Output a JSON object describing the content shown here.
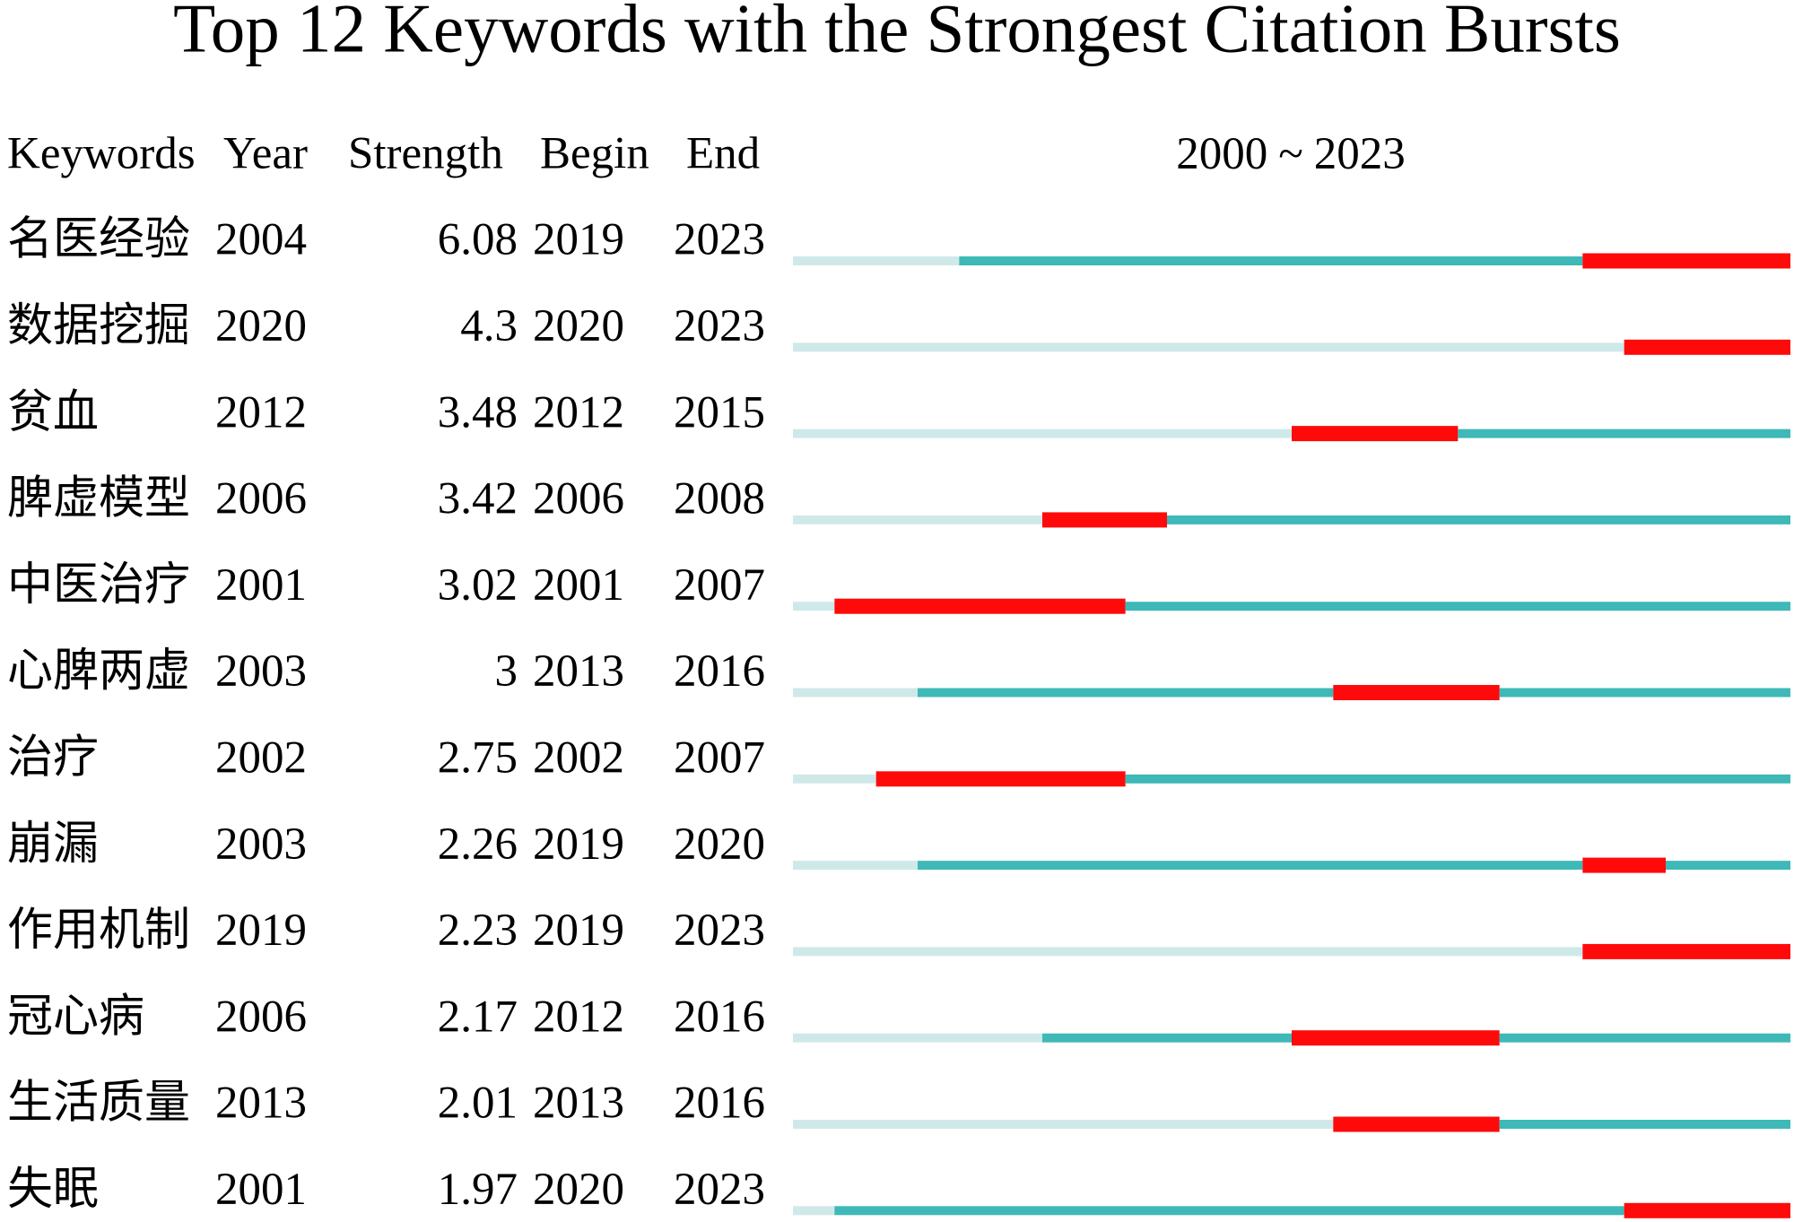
{
  "title": "Top 12 Keywords with the Strongest Citation Bursts",
  "columns": [
    "Keywords",
    "Year",
    "Strength",
    "Begin",
    "End"
  ],
  "range": {
    "start": 2000,
    "sep": "~",
    "end": 2023
  },
  "colors": {
    "before": "#cfe9e9",
    "active": "#3fb8b8",
    "burst": "#ff0a0a"
  },
  "rows": [
    {
      "keyword": "名医经验",
      "year": 2004,
      "strength": 6.08,
      "begin": 2019,
      "end": 2023
    },
    {
      "keyword": "数据挖掘",
      "year": 2020,
      "strength": 4.3,
      "begin": 2020,
      "end": 2023
    },
    {
      "keyword": "贫血",
      "year": 2012,
      "strength": 3.48,
      "begin": 2012,
      "end": 2015
    },
    {
      "keyword": "脾虚模型",
      "year": 2006,
      "strength": 3.42,
      "begin": 2006,
      "end": 2008
    },
    {
      "keyword": "中医治疗",
      "year": 2001,
      "strength": 3.02,
      "begin": 2001,
      "end": 2007
    },
    {
      "keyword": "心脾两虚",
      "year": 2003,
      "strength": 3,
      "begin": 2013,
      "end": 2016
    },
    {
      "keyword": "治疗",
      "year": 2002,
      "strength": 2.75,
      "begin": 2002,
      "end": 2007
    },
    {
      "keyword": "崩漏",
      "year": 2003,
      "strength": 2.26,
      "begin": 2019,
      "end": 2020
    },
    {
      "keyword": "作用机制",
      "year": 2019,
      "strength": 2.23,
      "begin": 2019,
      "end": 2023
    },
    {
      "keyword": "冠心病",
      "year": 2006,
      "strength": 2.17,
      "begin": 2012,
      "end": 2016
    },
    {
      "keyword": "生活质量",
      "year": 2013,
      "strength": 2.01,
      "begin": 2013,
      "end": 2016
    },
    {
      "keyword": "失眠",
      "year": 2001,
      "strength": 1.97,
      "begin": 2020,
      "end": 2023
    }
  ]
}
